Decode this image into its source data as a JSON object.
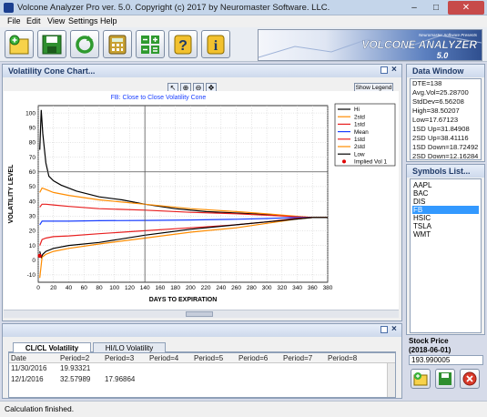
{
  "window": {
    "title": "Volcone Analyzer Pro ver. 5.0. Copyright (c) 2017 by Neuromaster Software. LLC."
  },
  "menu": [
    "File",
    "Edit",
    "View",
    "Settings",
    "Help"
  ],
  "toolbar": {
    "buttons": [
      "new-icon",
      "save-icon",
      "refresh-icon",
      "calculator-icon",
      "grid-calc-icon",
      "help-icon",
      "info-icon"
    ],
    "banner_title": "VOLCONE ANALYZER",
    "banner_version": "5.0",
    "banner_small": "Neuromaster Software Presents"
  },
  "chart_panel": {
    "title": "Volatility Cone Chart...",
    "show_legend": "Show Legend",
    "tools": [
      "pointer-icon",
      "zoom-in-icon",
      "zoom-out-icon",
      "pan-icon"
    ]
  },
  "chart_data": {
    "type": "line",
    "title": "FB: Close to Close Volatility Cone",
    "xlabel": "DAYS TO EXPIRATION",
    "ylabel": "VOLATILITY LEVEL",
    "xlim": [
      0,
      380
    ],
    "ylim": [
      -15,
      105
    ],
    "xticks": [
      0,
      20,
      40,
      60,
      80,
      100,
      120,
      140,
      160,
      180,
      200,
      220,
      240,
      260,
      280,
      300,
      320,
      340,
      360,
      380
    ],
    "yticks": [
      -10,
      0,
      10,
      20,
      30,
      40,
      50,
      60,
      70,
      80,
      90,
      100
    ],
    "crosshair": {
      "x": 140,
      "y": 60
    },
    "series": [
      {
        "name": "Hi",
        "color": "#000000",
        "x": [
          2,
          4,
          6,
          8,
          10,
          14,
          20,
          30,
          50,
          80,
          110,
          140,
          180,
          220,
          260,
          300,
          340,
          360,
          380
        ],
        "y": [
          75,
          102,
          86,
          76,
          66,
          57,
          54,
          51,
          47,
          43,
          41,
          38,
          35,
          33,
          32,
          31,
          29.5,
          29,
          29
        ]
      },
      {
        "name": "2std",
        "color": "#ff8c00",
        "x": [
          2,
          5,
          10,
          20,
          40,
          80,
          140,
          200,
          260,
          300,
          340,
          360,
          380
        ],
        "y": [
          46,
          49,
          48,
          46,
          44,
          41,
          38,
          35,
          33,
          31.5,
          29.8,
          29,
          29
        ]
      },
      {
        "name": "1std",
        "color": "#e82020",
        "x": [
          2,
          5,
          10,
          20,
          40,
          80,
          140,
          200,
          260,
          300,
          340,
          360,
          380
        ],
        "y": [
          36,
          38,
          38,
          37.5,
          36.5,
          35,
          34,
          32.5,
          31.5,
          30.5,
          29.5,
          29,
          29
        ]
      },
      {
        "name": "Mean",
        "color": "#1a3fff",
        "x": [
          2,
          5,
          10,
          20,
          40,
          80,
          140,
          200,
          260,
          300,
          340,
          360,
          380
        ],
        "y": [
          24,
          26.5,
          26.5,
          26.5,
          26.5,
          26.8,
          27,
          27.3,
          27.8,
          28.3,
          29,
          29,
          29
        ]
      },
      {
        "name": "1std",
        "color": "#e82020",
        "x": [
          2,
          5,
          10,
          20,
          40,
          80,
          140,
          200,
          260,
          300,
          340,
          360,
          380
        ],
        "y": [
          10,
          14,
          15,
          16,
          16.5,
          18,
          20,
          22,
          24,
          26,
          28.5,
          29,
          29
        ]
      },
      {
        "name": "2std",
        "color": "#ff8c00",
        "x": [
          2,
          5,
          10,
          20,
          40,
          80,
          140,
          200,
          260,
          300,
          340,
          360,
          380
        ],
        "y": [
          -12,
          2,
          4,
          6,
          8,
          11,
          15,
          19,
          22,
          25,
          28,
          29,
          29
        ]
      },
      {
        "name": "Low",
        "color": "#000000",
        "x": [
          2,
          4,
          6,
          10,
          20,
          40,
          80,
          140,
          200,
          260,
          300,
          340,
          360,
          380
        ],
        "y": [
          6,
          2,
          4,
          6,
          8,
          10,
          12,
          17,
          21,
          24,
          26,
          28,
          29,
          29
        ]
      },
      {
        "name": "Implied Vol 1",
        "color": "#e00000",
        "x": [
          2
        ],
        "y": [
          3
        ],
        "marker": "dot"
      }
    ]
  },
  "data_window": {
    "title": "Data Window",
    "lines": [
      "DTE=138",
      "Avg.Vol=25.28700",
      "StdDev=6.56208",
      "High=38.50207",
      "Low=17.67123",
      "1SD Up=31.84908",
      "2SD Up=38.41116",
      "1SD Down=18.72492",
      "2SD Down=12.16284"
    ]
  },
  "symbols": {
    "title": "Symbols List...",
    "items": [
      "AAPL",
      "BAC",
      "DIS",
      "FB",
      "HSIC",
      "TSLA",
      "WMT"
    ],
    "selected": "FB"
  },
  "stock_price": {
    "label": "Stock Price",
    "date": "(2018-06-01)",
    "value": "193.990005"
  },
  "bottom_tabs": [
    "CL/CL Volatility",
    "HI/LO Volatility"
  ],
  "table": {
    "columns": [
      "Date",
      "Period=2",
      "Period=3",
      "Period=4",
      "Period=5",
      "Period=6",
      "Period=7",
      "Period=8"
    ],
    "rows": [
      [
        "11/30/2016",
        "19.93321",
        "",
        "",
        "",
        "",
        "",
        ""
      ],
      [
        "12/1/2016",
        "32.57989",
        "17.96864",
        "",
        "",
        "",
        "",
        ""
      ]
    ]
  },
  "status": {
    "text": "Calculation finished."
  },
  "colors": {
    "accent": "#3399ff",
    "panel_head": "#1f3a68"
  }
}
